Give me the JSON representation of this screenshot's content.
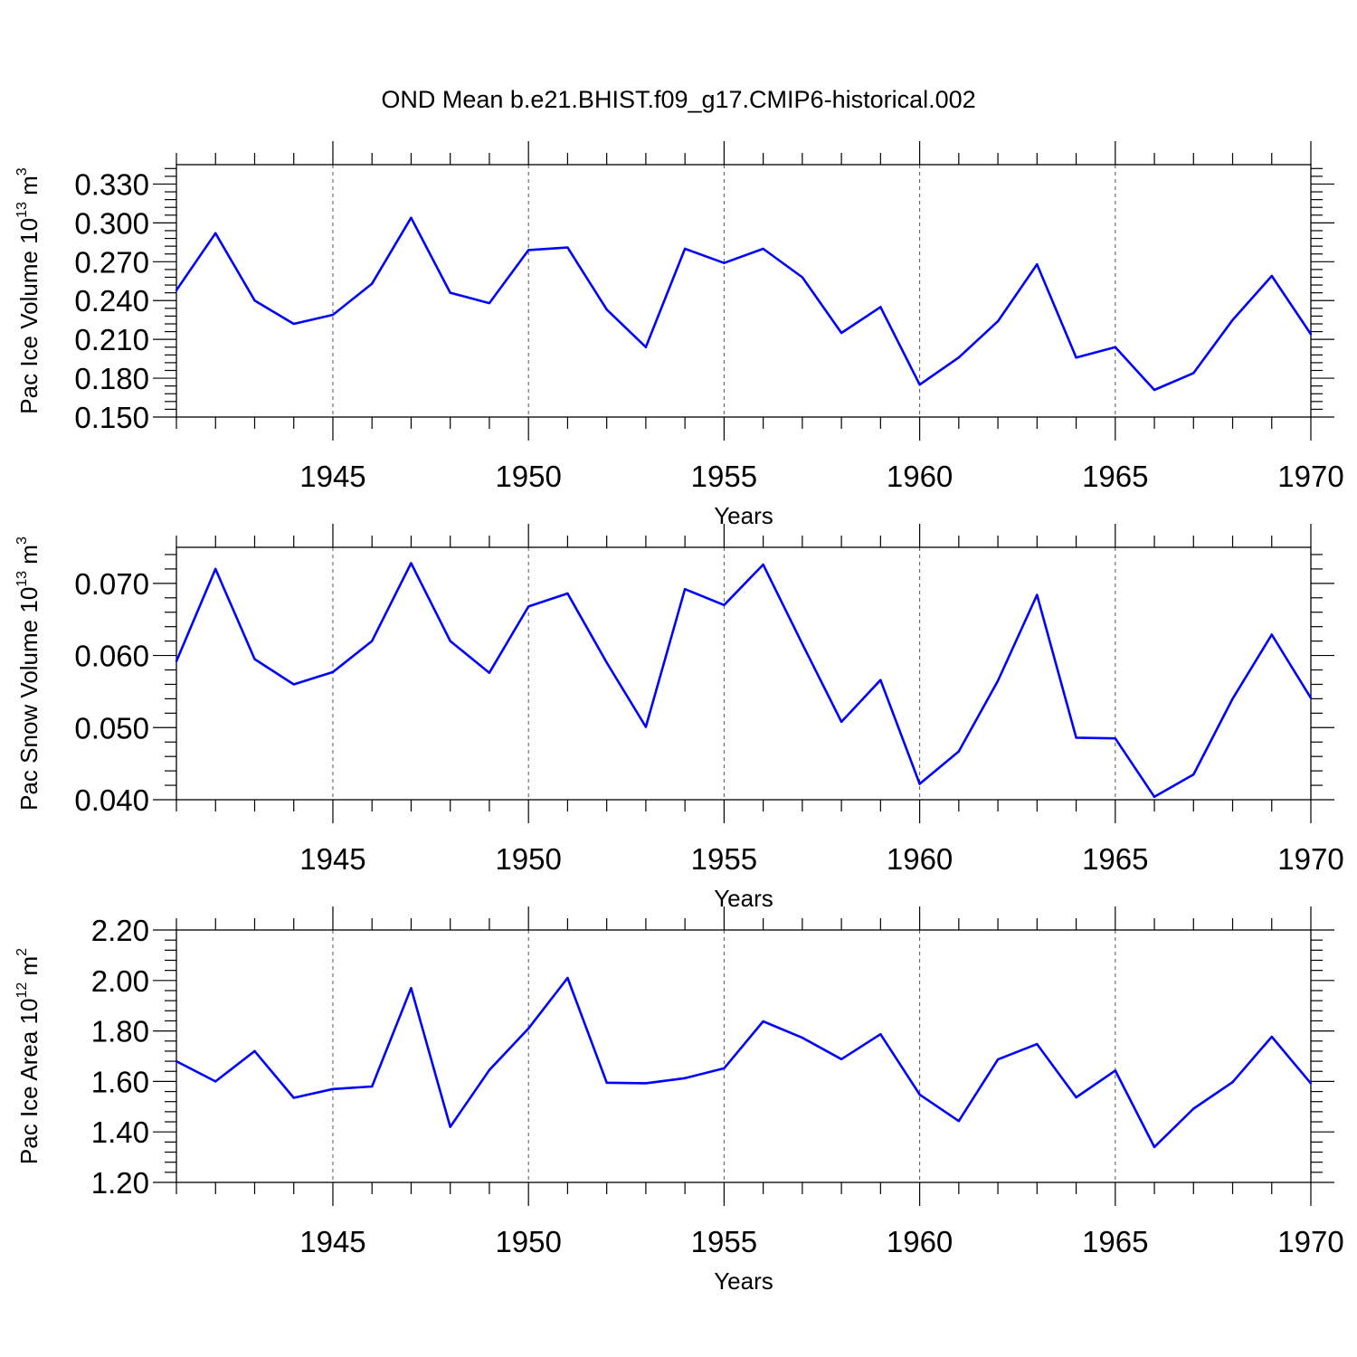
{
  "title": "OND Mean b.e21.BHIST.f09_g17.CMIP6-historical.002",
  "colors": {
    "line": "#0000ff",
    "axis": "#000000",
    "grid": "#555555"
  },
  "chart_data": [
    {
      "type": "line",
      "ylabel": {
        "text": "Pac Ice Volume 10",
        "sup": "13",
        "unit": " m",
        "unit_sup": "3"
      },
      "xlabel": "Years",
      "xlim": [
        1941,
        1970
      ],
      "ylim": [
        0.15,
        0.345
      ],
      "yticks": [
        0.15,
        0.18,
        0.21,
        0.24,
        0.27,
        0.3,
        0.33
      ],
      "ytick_labels": [
        "0.150",
        "0.180",
        "0.210",
        "0.240",
        "0.270",
        "0.300",
        "0.330"
      ],
      "xticks": [
        1945,
        1950,
        1955,
        1960,
        1965,
        1970
      ],
      "xtick_labels": [
        "1945",
        "1950",
        "1955",
        "1960",
        "1965",
        "1970"
      ],
      "grid": "vertical-dashed",
      "x": [
        1941,
        1942,
        1943,
        1944,
        1945,
        1946,
        1947,
        1948,
        1949,
        1950,
        1951,
        1952,
        1953,
        1954,
        1955,
        1956,
        1957,
        1958,
        1959,
        1960,
        1961,
        1962,
        1963,
        1964,
        1965,
        1966,
        1967,
        1968,
        1969,
        1970
      ],
      "values": [
        0.248,
        0.292,
        0.24,
        0.222,
        0.229,
        0.253,
        0.304,
        0.246,
        0.238,
        0.279,
        0.281,
        0.233,
        0.204,
        0.28,
        0.269,
        0.28,
        0.258,
        0.215,
        0.235,
        0.175,
        0.196,
        0.224,
        0.268,
        0.196,
        0.204,
        0.171,
        0.184,
        0.225,
        0.259,
        0.214
      ]
    },
    {
      "type": "line",
      "ylabel": {
        "text": "Pac Snow Volume 10",
        "sup": "13",
        "unit": " m",
        "unit_sup": "3"
      },
      "xlabel": "Years",
      "xlim": [
        1941,
        1970
      ],
      "ylim": [
        0.04,
        0.075
      ],
      "yticks": [
        0.04,
        0.05,
        0.06,
        0.07
      ],
      "ytick_labels": [
        "0.040",
        "0.050",
        "0.060",
        "0.070"
      ],
      "xticks": [
        1945,
        1950,
        1955,
        1960,
        1965,
        1970
      ],
      "xtick_labels": [
        "1945",
        "1950",
        "1955",
        "1960",
        "1965",
        "1970"
      ],
      "grid": "vertical-dashed",
      "x": [
        1941,
        1942,
        1943,
        1944,
        1945,
        1946,
        1947,
        1948,
        1949,
        1950,
        1951,
        1952,
        1953,
        1954,
        1955,
        1956,
        1957,
        1958,
        1959,
        1960,
        1961,
        1962,
        1963,
        1964,
        1965,
        1966,
        1967,
        1968,
        1969,
        1970
      ],
      "values": [
        0.0592,
        0.072,
        0.0595,
        0.056,
        0.0577,
        0.062,
        0.0728,
        0.062,
        0.0576,
        0.0668,
        0.0686,
        0.059,
        0.0501,
        0.0692,
        0.067,
        0.0726,
        0.0616,
        0.0508,
        0.0566,
        0.0422,
        0.0467,
        0.0565,
        0.0684,
        0.0486,
        0.0485,
        0.0404,
        0.0435,
        0.054,
        0.0629,
        0.0541
      ]
    },
    {
      "type": "line",
      "ylabel": {
        "text": "Pac Ice Area 10",
        "sup": "12",
        "unit": " m",
        "unit_sup": "2"
      },
      "xlabel": "Years",
      "xlim": [
        1941,
        1970
      ],
      "ylim": [
        1.2,
        2.2
      ],
      "yticks": [
        1.2,
        1.4,
        1.6,
        1.8,
        2.0,
        2.2
      ],
      "ytick_labels": [
        "1.20",
        "1.40",
        "1.60",
        "1.80",
        "2.00",
        "2.20"
      ],
      "xticks": [
        1945,
        1950,
        1955,
        1960,
        1965,
        1970
      ],
      "xtick_labels": [
        "1945",
        "1950",
        "1955",
        "1960",
        "1965",
        "1970"
      ],
      "grid": "vertical-dashed",
      "x": [
        1941,
        1942,
        1943,
        1944,
        1945,
        1946,
        1947,
        1948,
        1949,
        1950,
        1951,
        1952,
        1953,
        1954,
        1955,
        1956,
        1957,
        1958,
        1959,
        1960,
        1961,
        1962,
        1963,
        1964,
        1965,
        1966,
        1967,
        1968,
        1969,
        1970
      ],
      "values": [
        1.68,
        1.6,
        1.72,
        1.535,
        1.57,
        1.58,
        1.97,
        1.42,
        1.645,
        1.81,
        2.01,
        1.595,
        1.593,
        1.613,
        1.652,
        1.838,
        1.773,
        1.688,
        1.787,
        1.548,
        1.443,
        1.687,
        1.748,
        1.537,
        1.643,
        1.34,
        1.492,
        1.597,
        1.777,
        1.592
      ]
    }
  ]
}
